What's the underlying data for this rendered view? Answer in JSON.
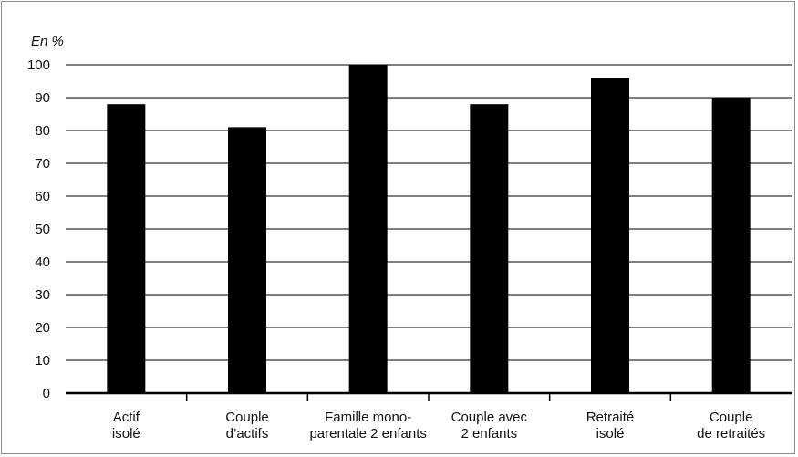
{
  "chart_data": {
    "type": "bar",
    "unit_label": "En %",
    "categories": [
      [
        "Actif",
        "isolé"
      ],
      [
        "Couple",
        "d’actifs"
      ],
      [
        "Famille mono-",
        "parentale 2 enfants"
      ],
      [
        "Couple avec",
        "2 enfants"
      ],
      [
        "Retraité",
        "isolé"
      ],
      [
        "Couple",
        "de retraités"
      ]
    ],
    "values": [
      88,
      81,
      100,
      88,
      96,
      90
    ],
    "ylim": [
      0,
      100
    ],
    "yticks": [
      0,
      10,
      20,
      30,
      40,
      50,
      60,
      70,
      80,
      90,
      100
    ],
    "grid": true,
    "bar_color": "#000000",
    "grid_color": "#000000"
  }
}
